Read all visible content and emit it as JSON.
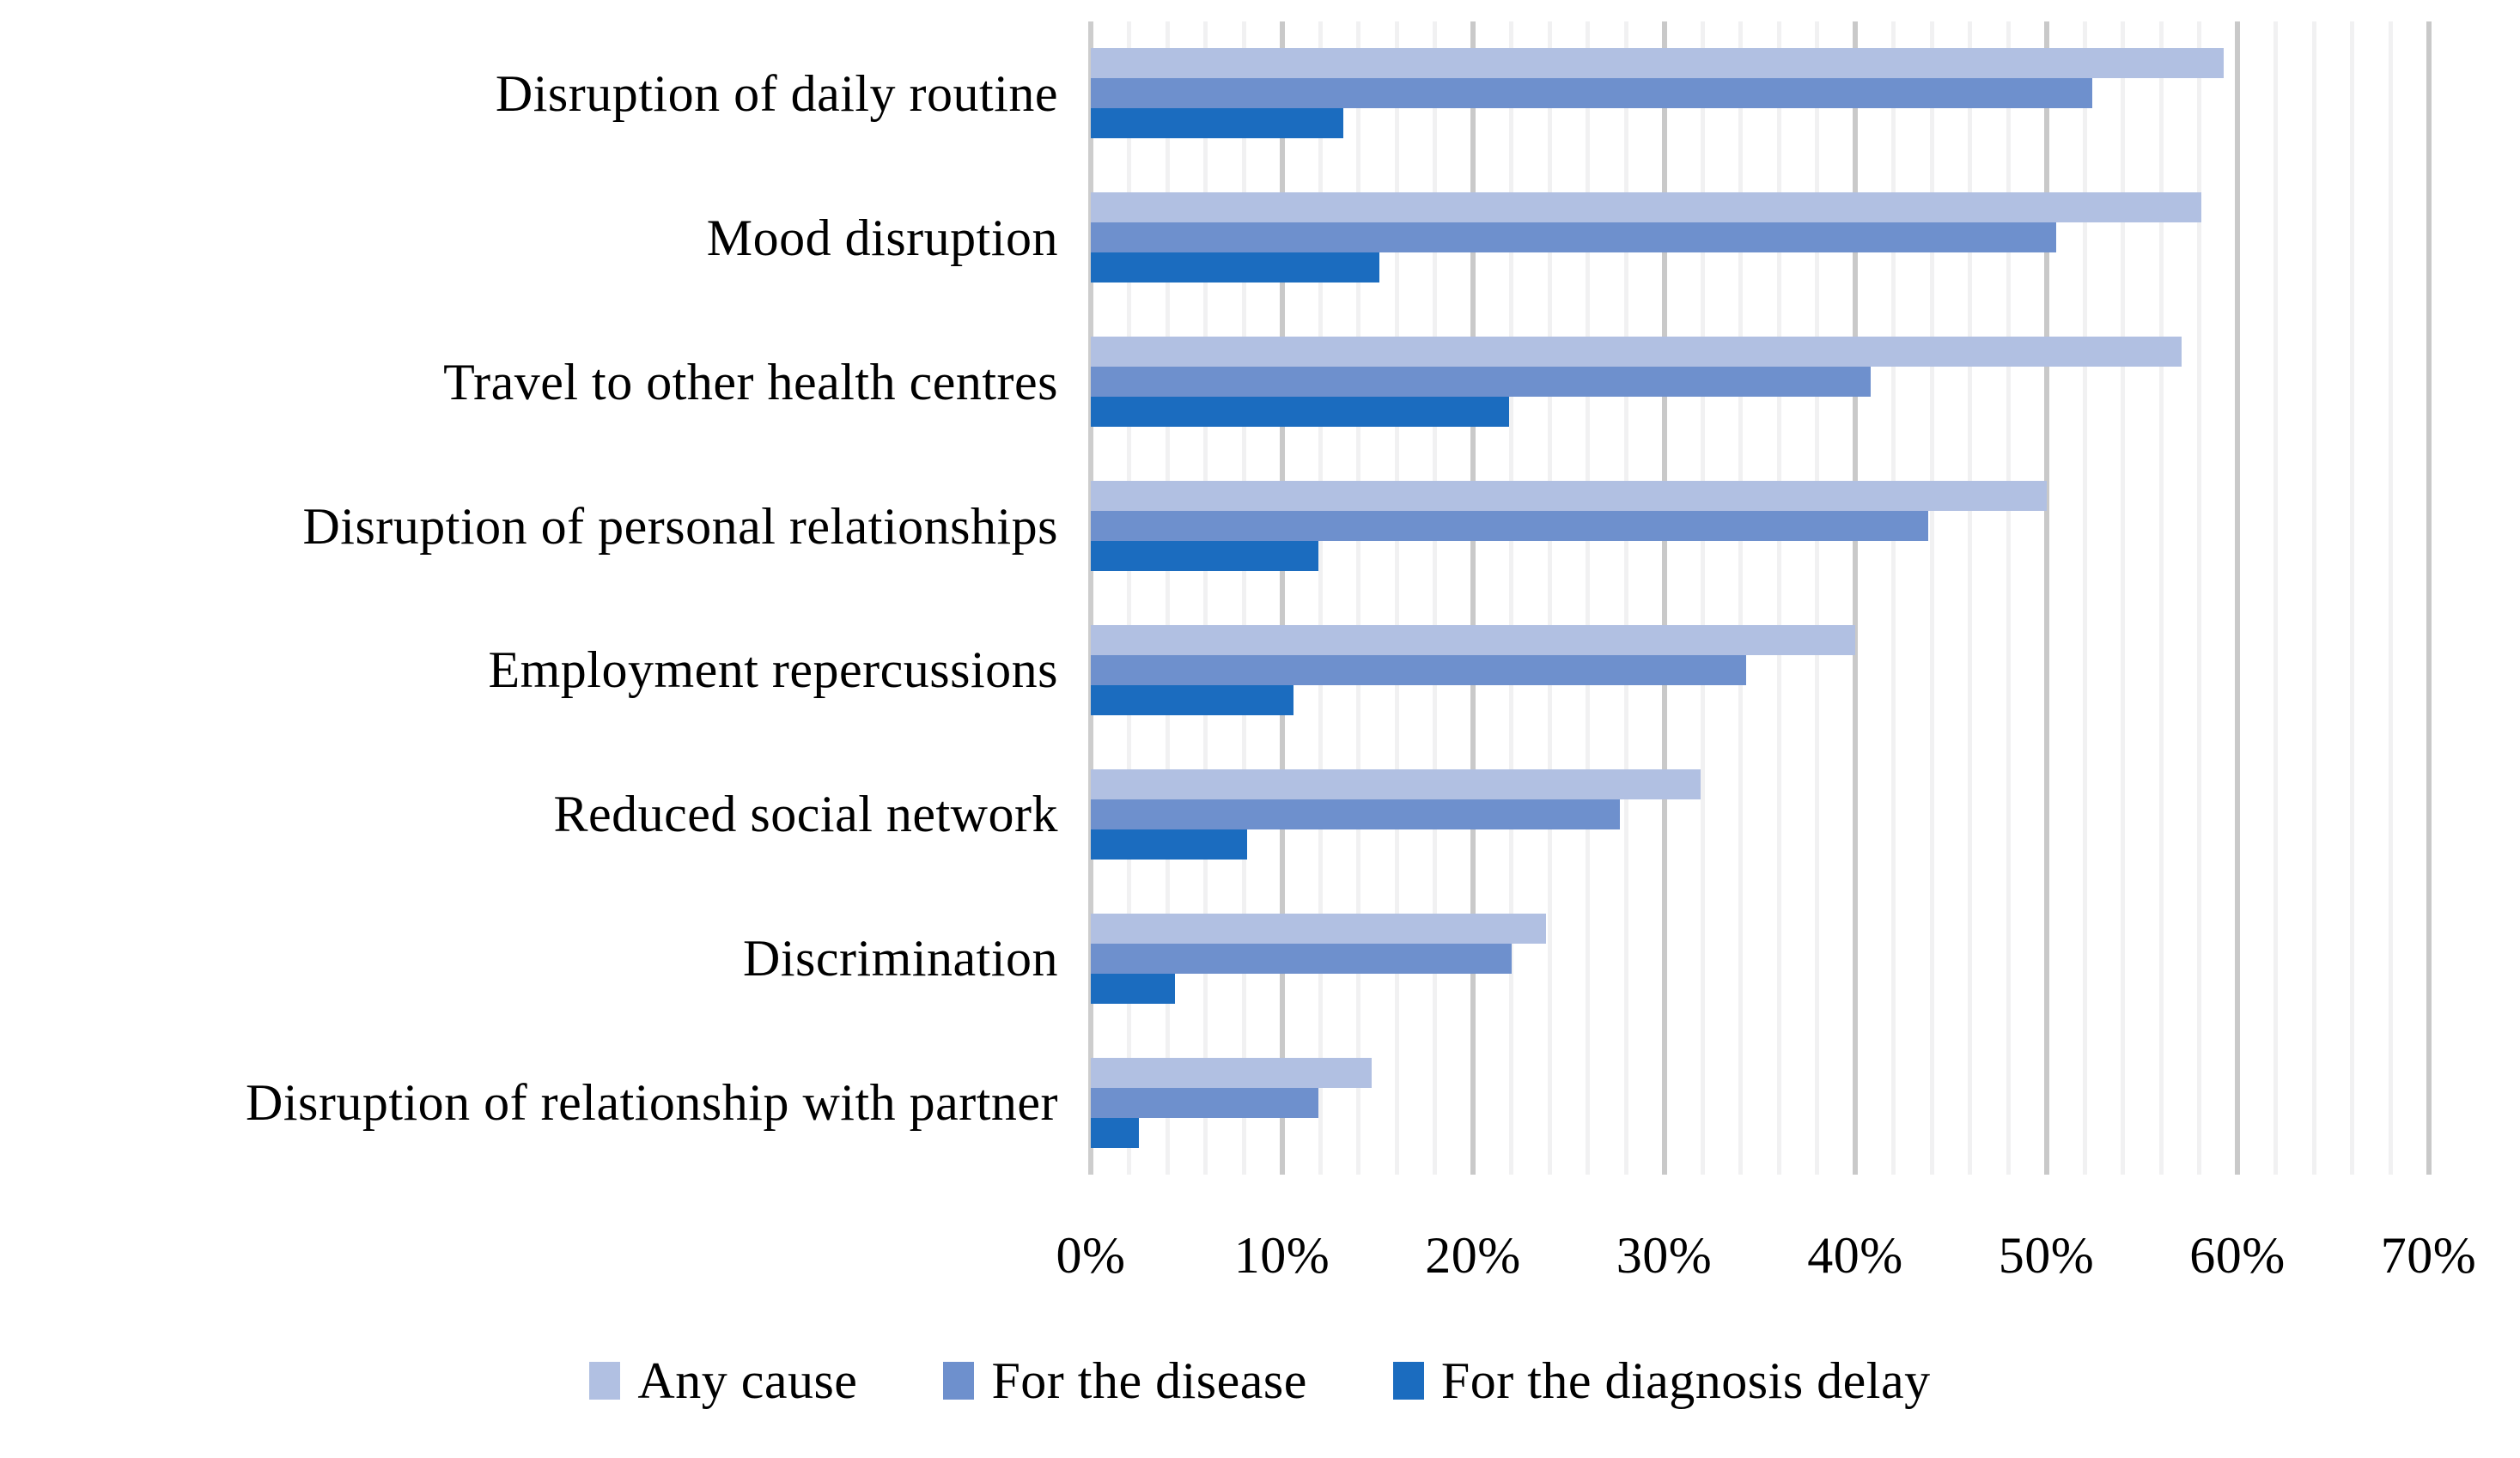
{
  "chart_data": {
    "type": "bar",
    "orientation": "horizontal",
    "title": "",
    "xlabel": "",
    "ylabel": "",
    "categories": [
      "Disruption of daily routine",
      "Mood disruption",
      "Travel to other health centres",
      "Disruption of personal relationships",
      "Employment repercussions",
      "Reduced social network",
      "Discrimination",
      "Disruption of relationship with partner"
    ],
    "series": [
      {
        "name": "Any cause",
        "color": "#b1c0e2",
        "values": [
          59.3,
          58.1,
          57.1,
          50.0,
          40.0,
          31.9,
          23.8,
          14.7
        ]
      },
      {
        "name": "For the disease",
        "color": "#6e90cd",
        "values": [
          52.4,
          50.5,
          40.8,
          43.8,
          34.3,
          27.7,
          22.0,
          11.9
        ]
      },
      {
        "name": "For the diagnosis delay",
        "color": "#1b6cbf",
        "values": [
          13.2,
          15.1,
          21.9,
          11.9,
          10.6,
          8.2,
          4.4,
          2.5
        ]
      }
    ],
    "axis": {
      "min": 0,
      "max": 70,
      "major_step": 10,
      "minor_step": 2,
      "tick_labels": [
        "0%",
        "10%",
        "20%",
        "30%",
        "40%",
        "50%",
        "60%",
        "70%"
      ],
      "tick_suffix": "%"
    },
    "grid": "vertical-major-and-minor",
    "legend_position": "bottom",
    "colors": {
      "major_gridline": "#c9c9c9",
      "minor_gridline": "#f1f1f2",
      "axis_line": "#cdcdcd",
      "background": "#ffffff",
      "text": "#000000"
    }
  }
}
